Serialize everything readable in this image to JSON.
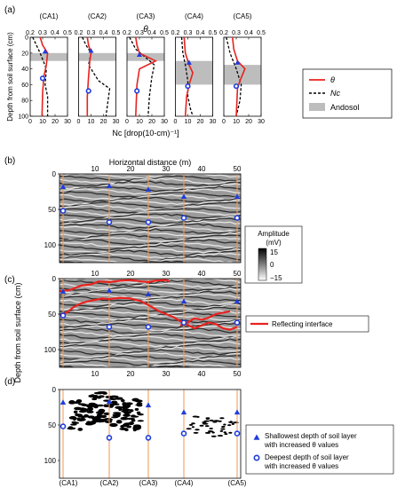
{
  "panel_labels": [
    "(a)",
    "(b)",
    "(c)",
    "(d)"
  ],
  "profiles": {
    "names": [
      "(CA1)",
      "(CA2)",
      "(CA3)",
      "(CA4)",
      "(CA5)"
    ],
    "theta_label": "θ",
    "theta_ticks": [
      "0.2",
      "0.3",
      "0.4",
      "0.5"
    ],
    "nc_ticks": [
      "0",
      "10",
      "20",
      "30"
    ],
    "depth_ticks": [
      "0",
      "20",
      "40",
      "60",
      "80",
      "100"
    ],
    "ylabel": "Depth from soil surface (cm)",
    "xlabel": "Nc [drop(10-cm)⁻¹]",
    "andosol_bands": [
      [
        20,
        30
      ],
      [
        20,
        30
      ],
      [
        20,
        30
      ],
      [
        30,
        60
      ],
      [
        35,
        60
      ]
    ],
    "theta_curves": [
      [
        [
          0.28,
          0
        ],
        [
          0.3,
          10
        ],
        [
          0.34,
          20
        ],
        [
          0.33,
          35
        ],
        [
          0.31,
          50
        ],
        [
          0.3,
          70
        ],
        [
          0.295,
          100
        ]
      ],
      [
        [
          0.27,
          0
        ],
        [
          0.28,
          10
        ],
        [
          0.3,
          20
        ],
        [
          0.29,
          30
        ],
        [
          0.28,
          50
        ],
        [
          0.27,
          75
        ],
        [
          0.27,
          100
        ]
      ],
      [
        [
          0.27,
          0
        ],
        [
          0.28,
          10
        ],
        [
          0.3,
          20
        ],
        [
          0.43,
          30
        ],
        [
          0.3,
          40
        ],
        [
          0.28,
          60
        ],
        [
          0.27,
          100
        ]
      ],
      [
        [
          0.27,
          0
        ],
        [
          0.28,
          20
        ],
        [
          0.31,
          35
        ],
        [
          0.34,
          45
        ],
        [
          0.31,
          60
        ],
        [
          0.29,
          75
        ],
        [
          0.28,
          100
        ]
      ],
      [
        [
          0.27,
          0
        ],
        [
          0.28,
          15
        ],
        [
          0.31,
          30
        ],
        [
          0.37,
          40
        ],
        [
          0.33,
          55
        ],
        [
          0.31,
          65
        ],
        [
          0.3,
          100
        ]
      ]
    ],
    "nc_curves": [
      [
        [
          2,
          0
        ],
        [
          5,
          10
        ],
        [
          8,
          20
        ],
        [
          13,
          40
        ],
        [
          12,
          60
        ],
        [
          14,
          75
        ],
        [
          14,
          100
        ]
      ],
      [
        [
          3,
          0
        ],
        [
          6,
          10
        ],
        [
          10,
          20
        ],
        [
          8,
          35
        ],
        [
          16,
          55
        ],
        [
          25,
          65
        ],
        [
          22,
          100
        ]
      ],
      [
        [
          2,
          0
        ],
        [
          7,
          15
        ],
        [
          22,
          35
        ],
        [
          20,
          50
        ],
        [
          18,
          75
        ],
        [
          17,
          100
        ]
      ],
      [
        [
          5,
          0
        ],
        [
          6,
          20
        ],
        [
          8,
          35
        ],
        [
          10,
          55
        ],
        [
          10,
          75
        ],
        [
          12,
          90
        ],
        [
          14,
          100
        ]
      ],
      [
        [
          2,
          0
        ],
        [
          5,
          20
        ],
        [
          10,
          40
        ],
        [
          14,
          60
        ],
        [
          13,
          80
        ],
        [
          10,
          100
        ]
      ]
    ],
    "shallow_markers": [
      [
        0.32,
        18
      ],
      [
        0.3,
        17
      ],
      [
        0.3,
        22
      ],
      [
        0.31,
        32
      ],
      [
        0.31,
        32
      ]
    ],
    "deep_markers": [
      [
        0.3,
        52
      ],
      [
        0.28,
        68
      ],
      [
        0.28,
        68
      ],
      [
        0.3,
        62
      ],
      [
        0.3,
        62
      ]
    ]
  },
  "legend_a": {
    "theta": "θ",
    "nc": "Nc",
    "andosol": "Andosol"
  },
  "gpr": {
    "xlabel": "Horizontal distance (m)",
    "x_ticks": [
      "10",
      "20",
      "30",
      "40",
      "50"
    ],
    "x_tick_values": [
      10,
      20,
      30,
      40,
      50
    ],
    "depth_ticks": [
      "0",
      "50",
      "100"
    ],
    "depth_tick_values": [
      0,
      50,
      100
    ],
    "x_range": [
      0,
      51
    ],
    "depth_range": [
      0,
      125
    ],
    "site_positions_m": [
      1,
      14,
      25,
      35,
      50
    ],
    "ylabel": "Depth from soil surface (cm)",
    "shallow_depths_cm": [
      18,
      17,
      22,
      32,
      32
    ],
    "deep_depths_cm": [
      52,
      68,
      68,
      62,
      62
    ],
    "reflecting_interface_upper": [
      [
        0,
        18
      ],
      [
        3,
        16
      ],
      [
        6,
        10
      ],
      [
        9,
        8
      ],
      [
        11,
        4
      ],
      [
        14,
        5
      ],
      [
        17,
        3
      ],
      [
        20,
        2
      ],
      [
        23,
        4
      ],
      [
        25,
        5
      ],
      [
        27,
        3
      ],
      [
        30,
        2
      ],
      [
        31,
        4
      ]
    ],
    "reflecting_interface_mid": [
      [
        0,
        52
      ],
      [
        2,
        48
      ],
      [
        4,
        40
      ],
      [
        6,
        35
      ],
      [
        8,
        32
      ],
      [
        10,
        30
      ],
      [
        12,
        28
      ],
      [
        14,
        29
      ],
      [
        17,
        27
      ],
      [
        20,
        28
      ],
      [
        23,
        32
      ],
      [
        26,
        40
      ],
      [
        28,
        46
      ],
      [
        30,
        50
      ],
      [
        32,
        54
      ],
      [
        34,
        60
      ],
      [
        36,
        65
      ],
      [
        38,
        70
      ],
      [
        40,
        66
      ],
      [
        42,
        62
      ],
      [
        44,
        64
      ],
      [
        46,
        70
      ],
      [
        48,
        72
      ],
      [
        50,
        68
      ]
    ],
    "reflecting_interface_lower": [
      [
        34,
        66
      ],
      [
        36,
        62
      ],
      [
        38,
        56
      ],
      [
        40,
        58
      ],
      [
        42,
        55
      ],
      [
        44,
        50
      ],
      [
        46,
        48
      ],
      [
        48,
        46
      ]
    ],
    "colorbar_title": "Amplitude",
    "colorbar_unit": "(mV)",
    "colorbar_ticks": [
      "15",
      "0",
      "−15"
    ],
    "legend_c": "Reflecting interface",
    "legend_d_shallow": "Shallowest depth of soil layer with increased θ values",
    "legend_d_deep": "Deepest depth of soil layer with increased θ values",
    "colors": {
      "theta": "#e8231f",
      "nc": "#000000",
      "andosol": "#bdbdbd",
      "marker": "#1f3ddb",
      "site_line": "#f0a060"
    }
  }
}
